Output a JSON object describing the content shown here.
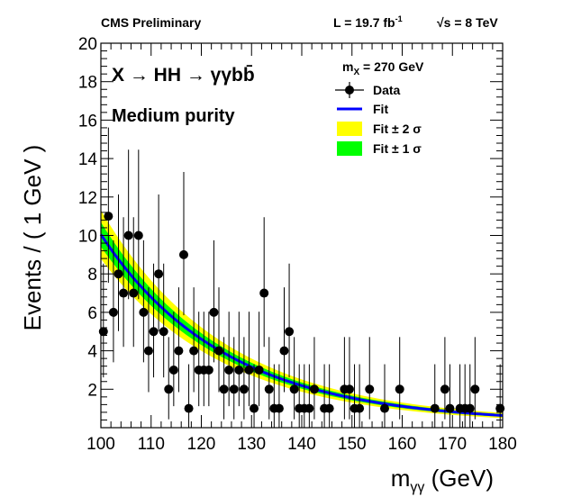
{
  "chart_data": {
    "type": "scatter",
    "title_left": "CMS Preliminary",
    "lumi_text": "L = 19.7 fb",
    "lumi_unit_sup": "-1",
    "energy_text": "√s = 8 TeV",
    "process_label": "X → HH → γγbb̄",
    "category_label": "Medium purity",
    "mass_label": "m",
    "mass_label_sub": "X",
    "mass_value": " = 270 GeV",
    "xlabel": "m",
    "xlabel_sub": "γγ",
    "xlabel_unit": " (GeV)",
    "ylabel": "Events / ( 1 GeV )",
    "xlim": [
      100,
      180
    ],
    "ylim": [
      0,
      20
    ],
    "xticks": [
      100,
      110,
      120,
      130,
      140,
      150,
      160,
      170,
      180
    ],
    "yticks": [
      2,
      4,
      6,
      8,
      10,
      12,
      14,
      16,
      18,
      20
    ],
    "legend": [
      {
        "label": "Data",
        "kind": "marker"
      },
      {
        "label": "Fit",
        "kind": "line"
      },
      {
        "label": "Fit ± 2 σ",
        "kind": "box",
        "color": "#ffff00"
      },
      {
        "label": "Fit ± 1 σ",
        "kind": "box",
        "color": "#00ff00"
      }
    ],
    "colors": {
      "fit": "#0000ff",
      "band2": "#ffff00",
      "band1": "#00ff00",
      "data": "#000000"
    },
    "fit": {
      "a": 9.8,
      "b": 0.0405,
      "c": 0.25
    },
    "data": [
      {
        "x": 100.5,
        "y": 5
      },
      {
        "x": 101.5,
        "y": 11
      },
      {
        "x": 102.5,
        "y": 6
      },
      {
        "x": 103.5,
        "y": 8
      },
      {
        "x": 104.5,
        "y": 7
      },
      {
        "x": 105.5,
        "y": 10
      },
      {
        "x": 106.5,
        "y": 7
      },
      {
        "x": 107.5,
        "y": 10
      },
      {
        "x": 108.5,
        "y": 6
      },
      {
        "x": 109.5,
        "y": 4
      },
      {
        "x": 110.5,
        "y": 5
      },
      {
        "x": 111.5,
        "y": 8
      },
      {
        "x": 112.5,
        "y": 5
      },
      {
        "x": 113.5,
        "y": 2
      },
      {
        "x": 114.5,
        "y": 3
      },
      {
        "x": 115.5,
        "y": 4
      },
      {
        "x": 116.5,
        "y": 9
      },
      {
        "x": 117.5,
        "y": 1
      },
      {
        "x": 118.5,
        "y": 4
      },
      {
        "x": 119.5,
        "y": 3
      },
      {
        "x": 120.5,
        "y": 3
      },
      {
        "x": 121.5,
        "y": 3
      },
      {
        "x": 122.5,
        "y": 6
      },
      {
        "x": 123.5,
        "y": 4
      },
      {
        "x": 124.5,
        "y": 2
      },
      {
        "x": 125.5,
        "y": 3
      },
      {
        "x": 126.5,
        "y": 2
      },
      {
        "x": 127.5,
        "y": 3
      },
      {
        "x": 128.5,
        "y": 2
      },
      {
        "x": 129.5,
        "y": 3
      },
      {
        "x": 130.5,
        "y": 1
      },
      {
        "x": 131.5,
        "y": 3
      },
      {
        "x": 132.5,
        "y": 7
      },
      {
        "x": 133.5,
        "y": 2
      },
      {
        "x": 134.5,
        "y": 1
      },
      {
        "x": 135.5,
        "y": 1
      },
      {
        "x": 136.5,
        "y": 4
      },
      {
        "x": 137.5,
        "y": 5
      },
      {
        "x": 138.5,
        "y": 2
      },
      {
        "x": 139.5,
        "y": 1
      },
      {
        "x": 140.5,
        "y": 1
      },
      {
        "x": 141.5,
        "y": 1
      },
      {
        "x": 142.5,
        "y": 2
      },
      {
        "x": 144.5,
        "y": 1
      },
      {
        "x": 145.5,
        "y": 1
      },
      {
        "x": 148.5,
        "y": 2
      },
      {
        "x": 149.5,
        "y": 2
      },
      {
        "x": 150.5,
        "y": 1
      },
      {
        "x": 151.5,
        "y": 1
      },
      {
        "x": 153.5,
        "y": 2
      },
      {
        "x": 156.5,
        "y": 1
      },
      {
        "x": 159.5,
        "y": 2
      },
      {
        "x": 166.5,
        "y": 1
      },
      {
        "x": 168.5,
        "y": 2
      },
      {
        "x": 169.5,
        "y": 1
      },
      {
        "x": 171.5,
        "y": 1
      },
      {
        "x": 172.5,
        "y": 1
      },
      {
        "x": 173.5,
        "y": 1
      },
      {
        "x": 174.5,
        "y": 2
      },
      {
        "x": 179.5,
        "y": 1
      }
    ]
  }
}
